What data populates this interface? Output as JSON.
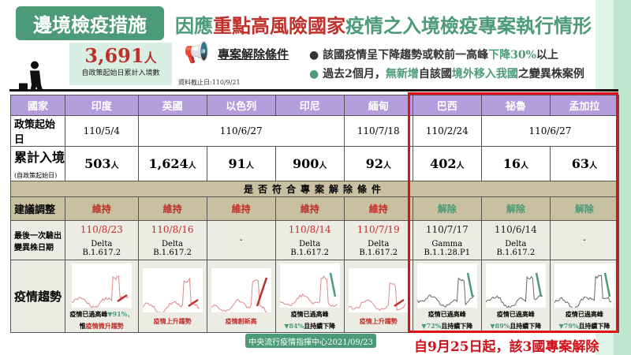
{
  "header": {
    "badge": "邊境檢疫措施",
    "title_pre": "因應",
    "title_red": "重點高風險國家",
    "title_post": "疫情之入境檢疫專案執行情形"
  },
  "summary": {
    "count": "3,691",
    "unit": "人",
    "label": "自政策起始日累計入境數",
    "data_date": "資料截止日:110/9/21"
  },
  "conditions": {
    "title": "專案解除條件",
    "items": [
      {
        "pre": "該國疫情呈下降趨勢或較前一高峰",
        "hl": "下降30%",
        "post": "以上"
      },
      {
        "pre": "過去2個月，",
        "hl": "無新增",
        "mid": "自該國",
        "hl2": "境外移入我國",
        "post": "之變異株案例"
      }
    ]
  },
  "table": {
    "row_labels": {
      "country": "國家",
      "policy_start": "政策起始日",
      "cumulative": "累計入境",
      "cumulative_sub": "(自政策起始日)",
      "conditions_banner": "是否符合專案解除條件",
      "suggestion": "建議調整",
      "last_variant": "最後一次驗出變異株日期",
      "trend": "疫情趨勢"
    },
    "countries": [
      "印度",
      "英國",
      "以色列",
      "印尼",
      "緬甸",
      "巴西",
      "祕魯",
      "孟加拉"
    ],
    "policy_start": [
      "110/5/4",
      "110/6/27",
      "110/7/18",
      "110/2/24",
      "110/6/27"
    ],
    "cumulative": [
      "503",
      "1,624",
      "91",
      "900",
      "92",
      "402",
      "16",
      "63"
    ],
    "person_unit": "人",
    "suggestion": [
      "維持",
      "維持",
      "維持",
      "維持",
      "維持",
      "解除",
      "解除",
      "解除"
    ],
    "last_variant": [
      {
        "date": "110/8/23",
        "strain": "Delta",
        "lineage": "B.1.617.2"
      },
      {
        "date": "110/8/16",
        "strain": "Delta",
        "lineage": "B.1.617.2"
      },
      {
        "date": "-"
      },
      {
        "date": "110/8/14",
        "strain": "Delta",
        "lineage": "B.1.617.2"
      },
      {
        "date": "110/7/19",
        "strain": "Delta",
        "lineage": "B.1.617.2"
      },
      {
        "date": "110/7/17",
        "strain": "Gamma",
        "lineage": "B.1.1.28.P1"
      },
      {
        "date": "110/6/14",
        "strain": "Delta",
        "lineage": "B.1.617.2"
      },
      {
        "date": "-"
      }
    ],
    "trend": [
      {
        "l1": "疫情已過高峰",
        "l1g": "▼91%，",
        "l2a": "惟",
        "l2r": "疫情微升趨勢",
        "dir": "up"
      },
      {
        "l1r": "疫情上升趨勢",
        "dir": "up"
      },
      {
        "l1r": "疫情創新高",
        "dir": "up"
      },
      {
        "l1": "疫情已過高峰",
        "l2g": "▼84%",
        "l2": "且持續下降",
        "dir": "down"
      },
      {
        "l1r": "疫情上升趨勢",
        "dir": "up"
      },
      {
        "l1": "疫情已過高峰",
        "l2g": "▼72%",
        "l2": "且持續下降",
        "dir": "down"
      },
      {
        "l1": "疫情已過高峰",
        "l2g": "▼89%",
        "l2": "且持續下降",
        "dir": "down"
      },
      {
        "l1": "疫情已過高峰",
        "l2g": "▼79%",
        "l2": "且持續下降",
        "dir": "down"
      }
    ]
  },
  "footer": {
    "source": "中央流行疫情指揮中心2021/09/23",
    "note": "自9月25日起，該3國專案解除"
  },
  "colors": {
    "green": "#4b9a78",
    "red": "#c0302a",
    "purple": "#b39ddb",
    "highlight_border": "#e0101a"
  }
}
